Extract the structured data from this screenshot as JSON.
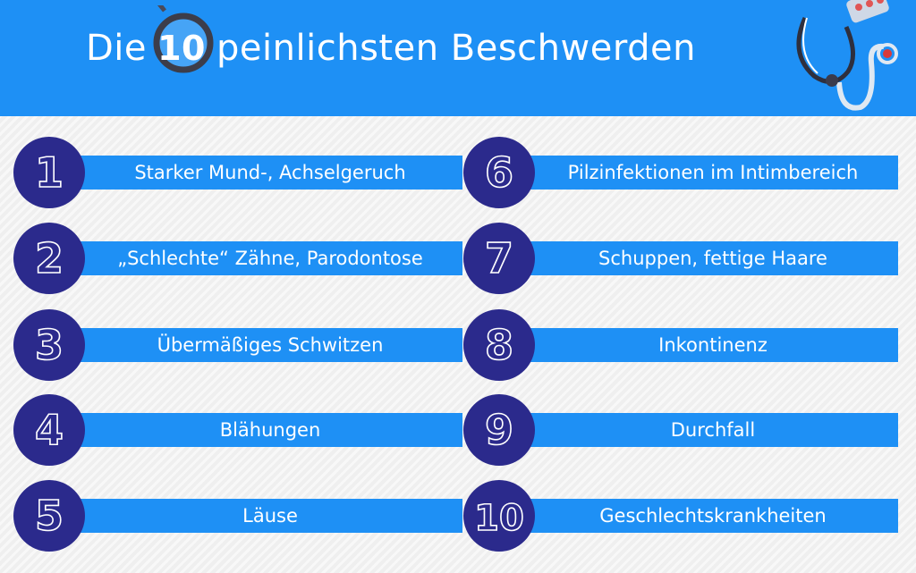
{
  "header": {
    "title_before": "Die",
    "title_number": "10",
    "title_after": "peinlichsten Beschwerden"
  },
  "colors": {
    "accent": "#1e90f5",
    "circle": "#2b2a8c",
    "text": "#ffffff"
  },
  "icons": [
    "magnifying-glass-icon",
    "stethoscope-icon",
    "pill-blister-icon"
  ],
  "items": [
    {
      "number": "1",
      "label": "Starker Mund-, Achselgeruch"
    },
    {
      "number": "2",
      "label": "„Schlechte“ Zähne, Parodontose"
    },
    {
      "number": "3",
      "label": "Übermäßiges Schwitzen"
    },
    {
      "number": "4",
      "label": "Blähungen"
    },
    {
      "number": "5",
      "label": "Läuse"
    },
    {
      "number": "6",
      "label": "Pilzinfektionen im Intimbereich"
    },
    {
      "number": "7",
      "label": "Schuppen, fettige Haare"
    },
    {
      "number": "8",
      "label": "Inkontinenz"
    },
    {
      "number": "9",
      "label": "Durchfall"
    },
    {
      "number": "10",
      "label": "Geschlechtskrankheiten"
    }
  ]
}
